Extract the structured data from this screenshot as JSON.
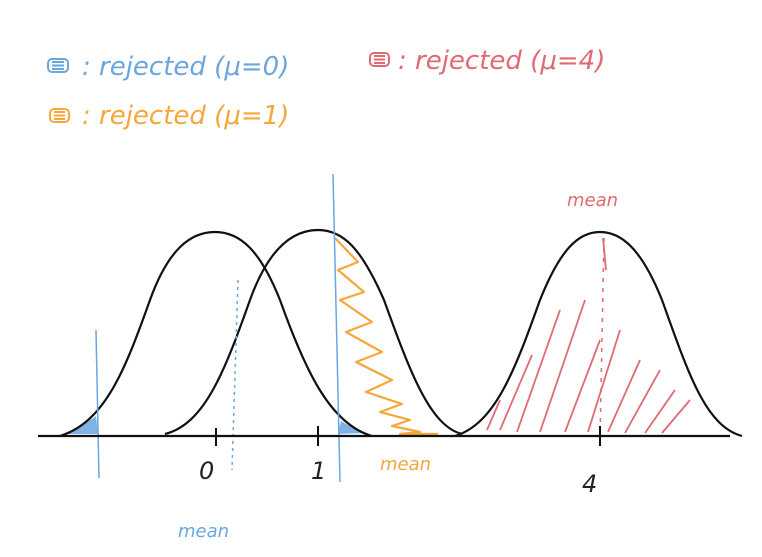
{
  "legend": [
    {
      "text": ": rejected (μ=0)",
      "color": "#6aa6e0"
    },
    {
      "text": ": rejected (μ=4)",
      "color": "#e06a72"
    },
    {
      "text": ": rejected (μ=1)",
      "color": "#f5a73a"
    }
  ],
  "axis": {
    "ticks": [
      "0",
      "1",
      "4"
    ]
  },
  "labels": {
    "mean_blue": "mean",
    "mean_orange": "mean",
    "mean_red": "mean"
  },
  "colors": {
    "blue": "#6aa6e0",
    "orange": "#f5a73a",
    "red": "#e06a72",
    "ink": "#111111"
  },
  "icons": [
    "swatch-icon"
  ]
}
